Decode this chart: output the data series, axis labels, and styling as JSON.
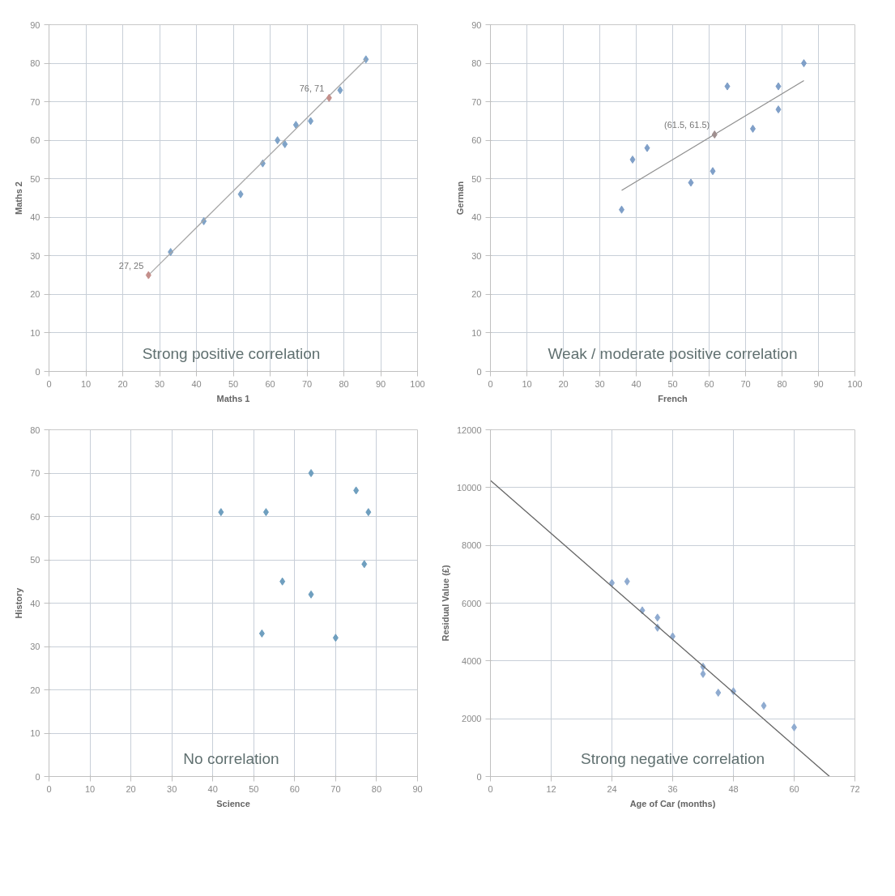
{
  "chart_data": [
    {
      "type": "scatter",
      "xlabel": "Maths 1",
      "ylabel": "Maths 2",
      "xlim": [
        0,
        100
      ],
      "ylim": [
        0,
        90
      ],
      "xticks": [
        0,
        10,
        20,
        30,
        40,
        50,
        60,
        70,
        80,
        90,
        100
      ],
      "yticks": [
        0,
        10,
        20,
        30,
        40,
        50,
        60,
        70,
        80,
        90
      ],
      "grid": true,
      "marker": "diamond",
      "series": [
        {
          "color": "#7fa3c8",
          "x": [
            33,
            42,
            52,
            58,
            62,
            64,
            67,
            71,
            79,
            86
          ],
          "values": [
            31,
            39,
            46,
            54,
            60,
            59,
            64,
            65,
            73,
            81
          ]
        },
        {
          "type": "line",
          "marker": "none",
          "color": "#a8a8a8",
          "x": [
            27,
            86
          ],
          "values": [
            25,
            81
          ]
        },
        {
          "color": "#c48f8b",
          "x": [
            27,
            76
          ],
          "values": [
            25,
            71
          ]
        }
      ],
      "annotations": [
        {
          "text": "76, 71",
          "x": 76,
          "y": 71
        },
        {
          "text": "27, 25",
          "x": 27,
          "y": 25
        },
        "Strong positive correlation"
      ]
    },
    {
      "type": "scatter",
      "xlabel": "French",
      "ylabel": "German",
      "xlim": [
        0,
        100
      ],
      "ylim": [
        0,
        90
      ],
      "xticks": [
        0,
        10,
        20,
        30,
        40,
        50,
        60,
        70,
        80,
        90,
        100
      ],
      "yticks": [
        0,
        10,
        20,
        30,
        40,
        50,
        60,
        70,
        80,
        90
      ],
      "grid": true,
      "marker": "diamond",
      "series": [
        {
          "color": "#7f9fc8",
          "x": [
            36,
            39,
            43,
            55,
            61,
            65,
            72,
            79,
            79,
            86
          ],
          "values": [
            42,
            55,
            58,
            49,
            52,
            74,
            63,
            74,
            68,
            80
          ]
        },
        {
          "type": "line",
          "marker": "none",
          "color": "#909090",
          "x": [
            36,
            86
          ],
          "values": [
            47,
            75.5
          ]
        },
        {
          "color": "#a09090",
          "x": [
            61.5
          ],
          "values": [
            61.5
          ]
        }
      ],
      "annotations": [
        {
          "text": "(61.5, 61.5)",
          "x": 61.5,
          "y": 61.5
        },
        "Weak / moderate positive correlation"
      ]
    },
    {
      "type": "scatter",
      "xlabel": "Science",
      "ylabel": "History",
      "xlim": [
        0,
        90
      ],
      "ylim": [
        0,
        80
      ],
      "xticks": [
        0,
        10,
        20,
        30,
        40,
        50,
        60,
        70,
        80,
        90
      ],
      "yticks": [
        0,
        10,
        20,
        30,
        40,
        50,
        60,
        70,
        80
      ],
      "grid": true,
      "marker": "diamond",
      "series": [
        {
          "color": "#6f9fbf",
          "x": [
            42,
            52,
            53,
            57,
            64,
            64,
            70,
            75,
            77,
            78
          ],
          "values": [
            61,
            33,
            61,
            45,
            70,
            42,
            32,
            66,
            49,
            61
          ]
        }
      ],
      "annotations": [
        "No correlation"
      ]
    },
    {
      "type": "scatter",
      "xlabel": "Age of Car (months)",
      "ylabel": "Residual Value (£)",
      "xlim": [
        0,
        72
      ],
      "ylim": [
        0,
        12000
      ],
      "xticks": [
        0,
        12,
        24,
        36,
        48,
        60,
        72
      ],
      "yticks": [
        0,
        2000,
        4000,
        6000,
        8000,
        10000,
        12000
      ],
      "grid": true,
      "marker": "diamond",
      "series": [
        {
          "color": "#8fabd0",
          "x": [
            24,
            27,
            30,
            33,
            33,
            36,
            42,
            42,
            45,
            48,
            54,
            60
          ],
          "values": [
            6700,
            6750,
            5750,
            5500,
            5150,
            4850,
            3800,
            3550,
            2900,
            2950,
            2450,
            1700
          ]
        },
        {
          "type": "line",
          "marker": "none",
          "color": "#666666",
          "x": [
            0,
            67
          ],
          "values": [
            10250,
            0
          ]
        }
      ],
      "annotations": [
        "Strong negative correlation"
      ]
    }
  ]
}
